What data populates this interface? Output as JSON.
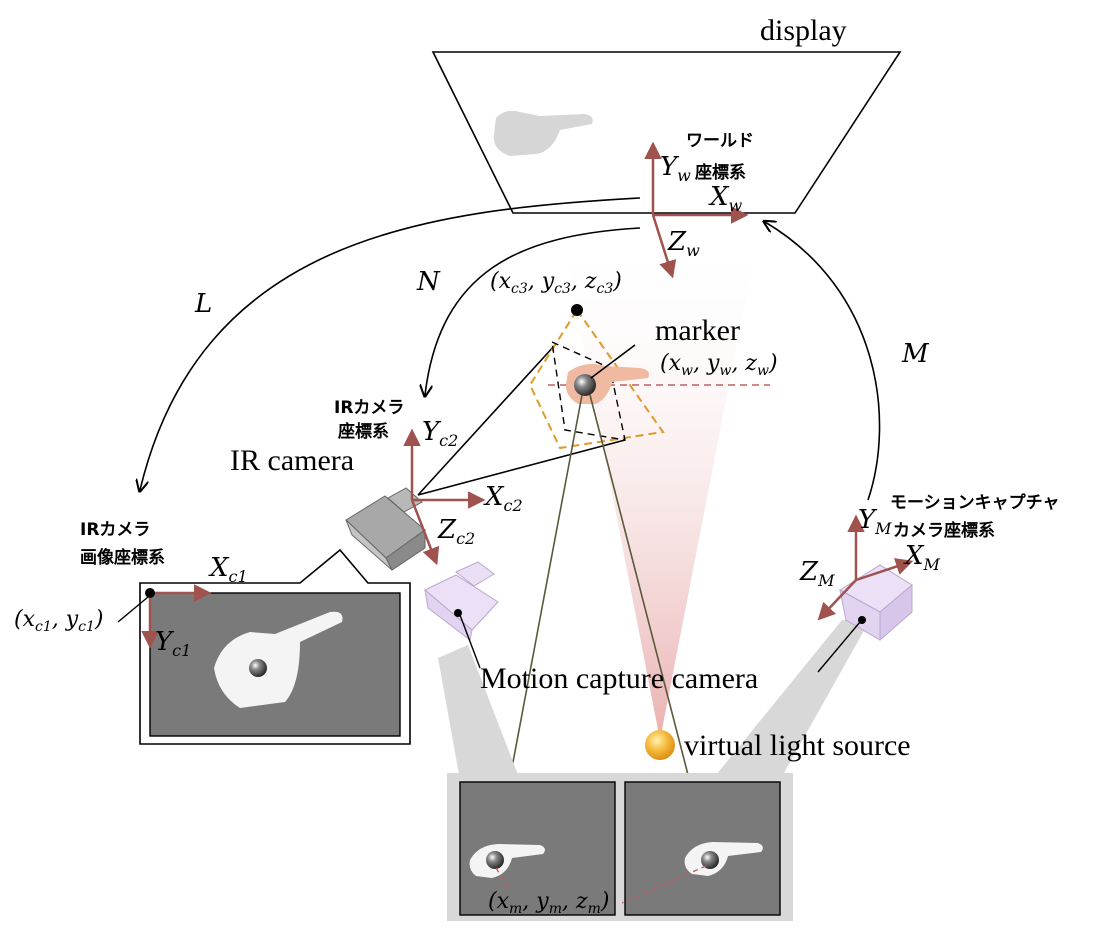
{
  "labels": {
    "display": "display",
    "world_cs": "ワールド",
    "world_cs_2": "座標系",
    "marker": "marker",
    "ir_camera": "IR camera",
    "ir_cam_cs_1": "IRカメラ",
    "ir_cam_cs_2": "座標系",
    "ir_img_cs_1": "IRカメラ",
    "ir_img_cs_2": "画像座標系",
    "mocap_cs_1": "モーションキャプチャ",
    "mocap_cs_2": "カメラ座標系",
    "mocap_camera": "Motion capture camera",
    "virtual_light": "virtual light source"
  },
  "transforms": {
    "L": "L",
    "N": "N",
    "M": "M"
  },
  "axes": {
    "Yw": "Y",
    "Yw_sub": "w",
    "Xw": "X",
    "Xw_sub": "w",
    "Zw": "Z",
    "Zw_sub": "w",
    "Yc2": "Y",
    "Yc2_sub": "c2",
    "Xc2": "X",
    "Xc2_sub": "c2",
    "Zc2": "Z",
    "Zc2_sub": "c2",
    "Xc1": "X",
    "Xc1_sub": "c1",
    "Yc1": "Y",
    "Yc1_sub": "c1",
    "YM": "Y",
    "YM_sub": "M",
    "XM": "X",
    "XM_sub": "M",
    "ZM": "Z",
    "ZM_sub": "M"
  },
  "coords": {
    "c3": "(x_c3, y_c3, z_c3)",
    "w": "(x_w, y_w, z_w)",
    "c1": "(x_c1, y_c1)",
    "m": "(x_m, y_m, z_m)"
  },
  "colors": {
    "axis": "#a0524f",
    "frustum": "#e09a2a",
    "light_cone": "#e8a0a0",
    "mocap_cam": "#e6d8f4",
    "ir_cam": "#9a9a9a",
    "screen": "#7a7a7a"
  }
}
